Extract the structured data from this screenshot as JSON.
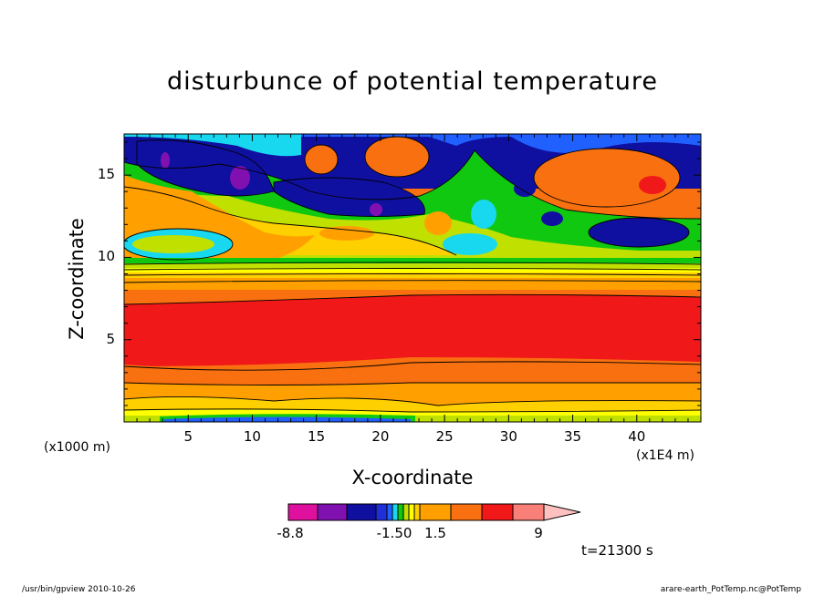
{
  "chart_data": {
    "type": "heatmap",
    "title": "disturbunce of potential temperature",
    "xlabel": "X-coordinate",
    "ylabel": "Z-coordinate",
    "x_unit_left": "(x1000 m)",
    "x_unit_right": "(x1E4 m)",
    "x_ticks": [
      "5",
      "10",
      "15",
      "20",
      "25",
      "30",
      "35",
      "40"
    ],
    "y_ticks": [
      "5",
      "10",
      "15"
    ],
    "xlim": [
      0,
      45
    ],
    "ylim": [
      0,
      17.5
    ],
    "colorbar": {
      "labels": [
        "-8.8",
        "-1.50",
        "1.5",
        "9"
      ],
      "colors": [
        "#e0109f",
        "#8010b0",
        "#1010a0",
        "#2030d8",
        "#2060ff",
        "#18d8f0",
        "#10c810",
        "#c0e000",
        "#ffff00",
        "#ffd000",
        "#ffa000",
        "#f87010",
        "#f01818",
        "#f88078",
        "#ffc0c0"
      ]
    },
    "time_label": "t=21300 s"
  },
  "footer": {
    "left": "/usr/bin/gpview  2010-10-26",
    "right": "arare-earth_PotTemp.nc@PotTemp"
  }
}
